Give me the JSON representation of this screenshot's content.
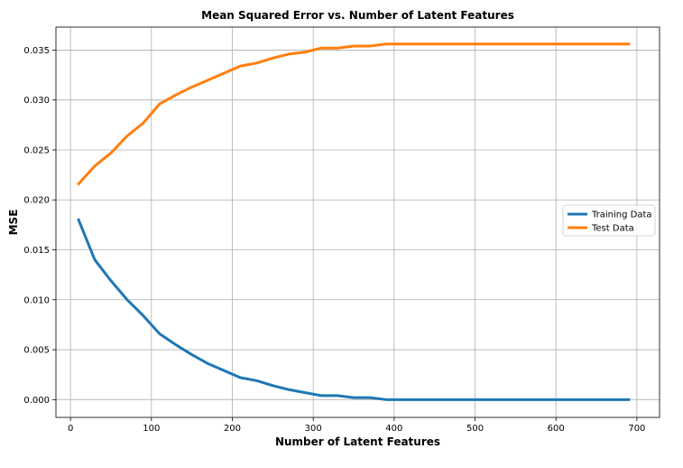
{
  "chart_data": {
    "type": "line",
    "title": "Mean Squared Error vs. Number of Latent Features",
    "xlabel": "Number of Latent Features",
    "ylabel": "MSE",
    "xlim": [
      -18,
      728
    ],
    "ylim": [
      -0.00178,
      0.0373
    ],
    "xticks": [
      0,
      100,
      200,
      300,
      400,
      500,
      600,
      700
    ],
    "yticks": [
      0.0,
      0.005,
      0.01,
      0.015,
      0.02,
      0.025,
      0.03,
      0.035
    ],
    "ytick_labels": [
      "0.000",
      "0.005",
      "0.010",
      "0.015",
      "0.020",
      "0.025",
      "0.030",
      "0.035"
    ],
    "grid": true,
    "legend_position": "right",
    "x": [
      10,
      30,
      50,
      70,
      90,
      110,
      130,
      150,
      170,
      190,
      210,
      230,
      250,
      270,
      290,
      310,
      330,
      350,
      370,
      390,
      410,
      430,
      450,
      470,
      490,
      510,
      530,
      550,
      570,
      590,
      610,
      630,
      650,
      670,
      690
    ],
    "series": [
      {
        "name": "Training Data",
        "color": "#1f77b4",
        "values": [
          0.018,
          0.014,
          0.0119,
          0.01,
          0.0084,
          0.0066,
          0.0055,
          0.0045,
          0.0036,
          0.0029,
          0.0022,
          0.0019,
          0.0014,
          0.001,
          0.0007,
          0.0004,
          0.0004,
          0.0002,
          0.0002,
          0.0,
          0.0,
          0.0,
          0.0,
          0.0,
          0.0,
          0.0,
          0.0,
          0.0,
          0.0,
          0.0,
          0.0,
          0.0,
          0.0,
          0.0,
          0.0
        ]
      },
      {
        "name": "Test Data",
        "color": "#ff7f0e",
        "values": [
          0.0216,
          0.0234,
          0.0247,
          0.0264,
          0.0277,
          0.0296,
          0.0305,
          0.0313,
          0.032,
          0.0327,
          0.0334,
          0.0337,
          0.0342,
          0.0346,
          0.0348,
          0.0352,
          0.0352,
          0.0354,
          0.0354,
          0.0356,
          0.0356,
          0.0356,
          0.0356,
          0.0356,
          0.0356,
          0.0356,
          0.0356,
          0.0356,
          0.0356,
          0.0356,
          0.0356,
          0.0356,
          0.0356,
          0.0356,
          0.0356
        ]
      }
    ]
  }
}
